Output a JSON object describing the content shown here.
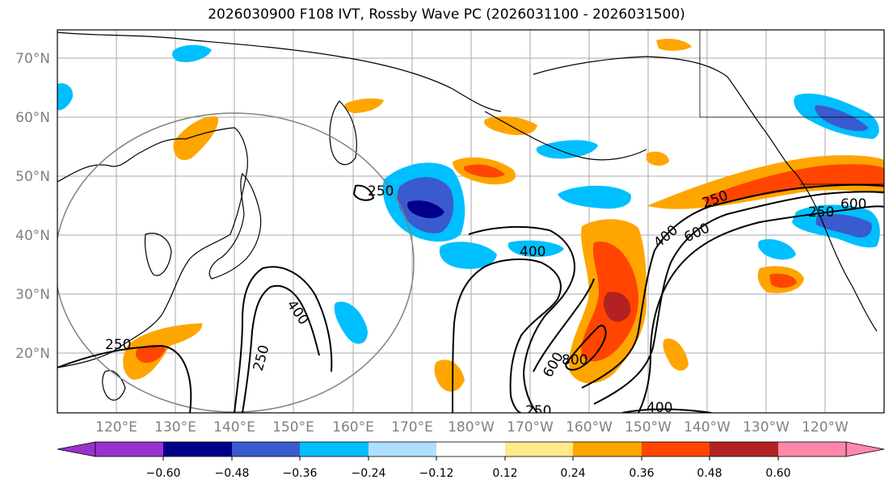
{
  "title": "2026030900 F108 IVT, Rossby Wave PC (2026031100 - 2026031500)",
  "map": {
    "extent": {
      "lon_min": 110,
      "lon_max": 250,
      "lat_min": 10,
      "lat_max": 75
    },
    "lat_labels": [
      "20°N",
      "30°N",
      "40°N",
      "50°N",
      "60°N",
      "70°N"
    ],
    "lon_labels": [
      "120°E",
      "130°E",
      "140°E",
      "150°E",
      "160°E",
      "170°E",
      "180°W",
      "170°W",
      "160°W",
      "150°W",
      "140°W",
      "130°W",
      "120°W"
    ],
    "contour_labels": [
      "250",
      "400",
      "250",
      "250",
      "600",
      "400",
      "800",
      "600",
      "400",
      "250",
      "600",
      "250",
      "400",
      "250"
    ],
    "colors": {
      "land_outline": "#000000",
      "gridline": "#aaaaaa",
      "range_circle": "#808080"
    }
  },
  "colorbar": {
    "tick_labels": [
      "−0.60",
      "−0.48",
      "−0.36",
      "−0.24",
      "−0.12",
      "0.12",
      "0.24",
      "0.36",
      "0.48",
      "0.60"
    ],
    "colors": [
      "#9932CC",
      "#00008B",
      "#3A5BCD",
      "#00BFFF",
      "#ADDFFF",
      "#FFFFFF",
      "#FFE98A",
      "#FFA500",
      "#FF4500",
      "#B22222",
      "#FF88AA"
    ]
  }
}
